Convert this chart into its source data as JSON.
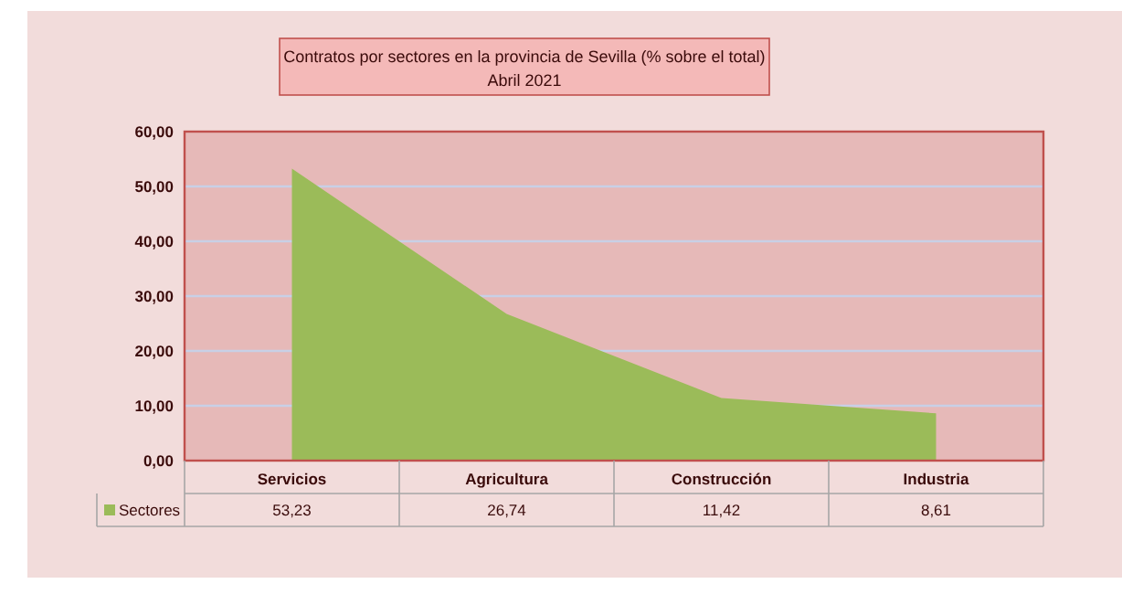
{
  "chart_data": {
    "type": "area",
    "title": "Contratos por sectores en la provincia de Sevilla (% sobre el total)",
    "subtitle": "Abril 2021",
    "categories": [
      "Servicios",
      "Agricultura",
      "Construcción",
      "Industria"
    ],
    "series": [
      {
        "name": "Sectores",
        "color": "#9bbb59",
        "values": [
          53.23,
          26.74,
          11.42,
          8.61
        ],
        "value_labels": [
          "53,23",
          "26,74",
          "11,42",
          "8,61"
        ]
      }
    ],
    "ylim": [
      0,
      60
    ],
    "yticks": [
      {
        "value": 0,
        "label": "0,00"
      },
      {
        "value": 10,
        "label": "10,00"
      },
      {
        "value": 20,
        "label": "20,00"
      },
      {
        "value": 30,
        "label": "30,00"
      },
      {
        "value": 40,
        "label": "40,00"
      },
      {
        "value": 50,
        "label": "50,00"
      },
      {
        "value": 60,
        "label": "60,00"
      }
    ],
    "grid": "y",
    "legend": "bottom left"
  }
}
